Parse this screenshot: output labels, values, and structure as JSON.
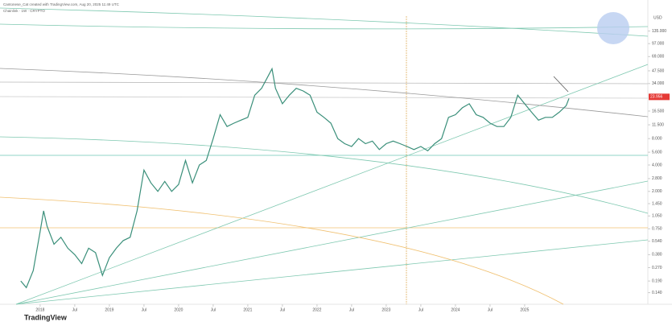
{
  "chart_data": {
    "type": "line",
    "title": "Chainlink · 1W · CRYPTO",
    "subtitle": "Cantonese_Cat created with TradingView.com, Aug 20, 2025 11:49 UTC",
    "brand": "TradingView",
    "y_unit": "USD",
    "log_scale": true,
    "grid": false,
    "series": [
      {
        "name": "Chainlink",
        "color": "#3a8f7a",
        "x": [
          2017.72,
          2017.8,
          2017.9,
          2018.0,
          2018.05,
          2018.1,
          2018.2,
          2018.3,
          2018.4,
          2018.5,
          2018.6,
          2018.7,
          2018.8,
          2018.9,
          2019.0,
          2019.1,
          2019.2,
          2019.3,
          2019.4,
          2019.5,
          2019.6,
          2019.7,
          2019.8,
          2019.9,
          2020.0,
          2020.1,
          2020.2,
          2020.3,
          2020.4,
          2020.5,
          2020.6,
          2020.7,
          2020.8,
          2020.9,
          2021.0,
          2021.1,
          2021.2,
          2021.35,
          2021.4,
          2021.5,
          2021.6,
          2021.7,
          2021.8,
          2021.9,
          2022.0,
          2022.1,
          2022.2,
          2022.3,
          2022.4,
          2022.5,
          2022.6,
          2022.7,
          2022.8,
          2022.9,
          2023.0,
          2023.1,
          2023.2,
          2023.3,
          2023.4,
          2023.5,
          2023.6,
          2023.7,
          2023.8,
          2023.9,
          2024.0,
          2024.1,
          2024.2,
          2024.3,
          2024.4,
          2024.5,
          2024.6,
          2024.7,
          2024.8,
          2024.9,
          2025.0,
          2025.1,
          2025.2,
          2025.3,
          2025.4,
          2025.5,
          2025.6,
          2025.64
        ],
        "values": [
          0.19,
          0.16,
          0.25,
          0.7,
          1.2,
          0.8,
          0.5,
          0.6,
          0.45,
          0.38,
          0.3,
          0.45,
          0.4,
          0.22,
          0.35,
          0.45,
          0.55,
          0.6,
          1.2,
          3.5,
          2.5,
          2.0,
          2.6,
          2.0,
          2.4,
          4.5,
          2.5,
          4.0,
          4.5,
          8,
          15,
          11,
          12,
          13,
          14,
          25,
          30,
          50,
          30,
          20,
          25,
          30,
          28,
          25,
          16,
          14,
          12,
          8,
          7,
          6.5,
          8,
          7,
          7.5,
          6,
          7,
          7.5,
          7,
          6.5,
          6,
          6.5,
          5.8,
          7,
          8,
          14,
          15,
          18,
          20,
          15,
          14,
          12,
          11,
          11,
          14,
          25,
          20,
          16,
          13,
          14,
          14,
          16,
          19,
          23
        ]
      }
    ],
    "xlim": [
      2017.42,
      2026.78
    ],
    "xticks": [
      {
        "value": 2018,
        "label": "2018"
      },
      {
        "value": 2018.5,
        "label": "Jul"
      },
      {
        "value": 2019,
        "label": "2019"
      },
      {
        "value": 2019.5,
        "label": "Jul"
      },
      {
        "value": 2020,
        "label": "2020"
      },
      {
        "value": 2020.5,
        "label": "Jul"
      },
      {
        "value": 2021,
        "label": "2021"
      },
      {
        "value": 2021.5,
        "label": "Jul"
      },
      {
        "value": 2022,
        "label": "2022"
      },
      {
        "value": 2022.5,
        "label": "Jul"
      },
      {
        "value": 2023,
        "label": "2023"
      },
      {
        "value": 2023.5,
        "label": "Jul"
      },
      {
        "value": 2024,
        "label": "2024"
      },
      {
        "value": 2024.5,
        "label": "Jul"
      },
      {
        "value": 2025,
        "label": "2025"
      }
    ],
    "ylim": [
      0.11,
      305
    ],
    "yticks": [
      {
        "value": 135,
        "label": "135.000"
      },
      {
        "value": 97,
        "label": "97.000"
      },
      {
        "value": 69,
        "label": "69.000"
      },
      {
        "value": 47.5,
        "label": "47.500"
      },
      {
        "value": 34,
        "label": "34.000"
      },
      {
        "value": 16.5,
        "label": "16.500"
      },
      {
        "value": 11.5,
        "label": "11.500"
      },
      {
        "value": 8,
        "label": "8.000"
      },
      {
        "value": 5.6,
        "label": "5.600"
      },
      {
        "value": 4,
        "label": "4.000"
      },
      {
        "value": 2.8,
        "label": "2.800"
      },
      {
        "value": 2,
        "label": "2.000"
      },
      {
        "value": 1.45,
        "label": "1.450"
      },
      {
        "value": 1.05,
        "label": "1.050"
      },
      {
        "value": 0.75,
        "label": "0.750"
      },
      {
        "value": 0.54,
        "label": "0.540"
      },
      {
        "value": 0.38,
        "label": "0.380"
      },
      {
        "value": 0.27,
        "label": "0.270"
      },
      {
        "value": 0.19,
        "label": "0.190"
      },
      {
        "value": 0.14,
        "label": "0.140"
      }
    ],
    "last_price": {
      "value": 23.956,
      "label": "23.956",
      "color": "#e53935"
    }
  }
}
